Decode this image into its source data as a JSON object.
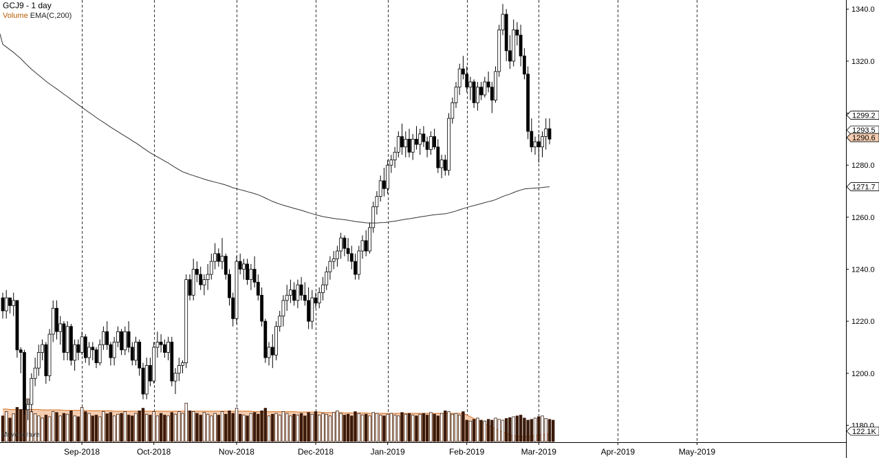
{
  "header": {
    "title": "GCJ9 - 1 day",
    "volume_label": "Volume",
    "ema_label": "EMA(C,200)"
  },
  "volume_pane_label": "MovAverave",
  "colors": {
    "up_candle": "#ffffff",
    "down_candle": "#000000",
    "volume_bar": "#3a1a0a",
    "volume_avg_fill": "#f5cdb0",
    "volume_avg_line": "#d9823f",
    "ema_line": "#333333",
    "grid": "#000000"
  },
  "chart_data": {
    "type": "candlestick",
    "title": "GCJ9 - 1 day",
    "price_axis": {
      "ticks": [
        1340.0,
        1320.0,
        1300.0,
        1280.0,
        1260.0,
        1240.0,
        1220.0,
        1200.0,
        1180.0
      ],
      "tick_labels": [
        "1340.0",
        "1320.0",
        "1300.0",
        "1280.0",
        "1260.0",
        "1240.0",
        "1220.0",
        "1200.0",
        "1180.0"
      ],
      "range": [
        1173.5,
        1343.5
      ]
    },
    "price_markers": [
      {
        "value": 1299.2,
        "label": "1299.2",
        "style": "plain"
      },
      {
        "value": 1293.5,
        "label": "1293.5",
        "style": "plain"
      },
      {
        "value": 1290.6,
        "label": "1290.6",
        "style": "highlight"
      },
      {
        "value": 1271.7,
        "label": "1271.7",
        "style": "plain"
      }
    ],
    "volume_marker": {
      "label": "122.1K"
    },
    "x_axis": {
      "labels": [
        "Sep-2018",
        "Oct-2018",
        "Nov-2018",
        "Dec-2018",
        "Jan-2019",
        "Feb-2019",
        "Mar-2019",
        "Apr-2019",
        "May-2019"
      ],
      "month_start_index": [
        22,
        42,
        65,
        87,
        107,
        129,
        149,
        171,
        193
      ]
    },
    "grid": "vertical dashed at month starts",
    "candles": [
      [
        1229,
        1231,
        1221,
        1224
      ],
      [
        1224,
        1232,
        1221,
        1229
      ],
      [
        1229,
        1229,
        1223,
        1226
      ],
      [
        1226,
        1231,
        1222,
        1228
      ],
      [
        1228,
        1228,
        1206,
        1209
      ],
      [
        1209,
        1210,
        1200,
        1208
      ],
      [
        1208,
        1209,
        1184,
        1186
      ],
      [
        1186,
        1190,
        1182,
        1188
      ],
      [
        1188,
        1200,
        1185,
        1198
      ],
      [
        1198,
        1206,
        1195,
        1202
      ],
      [
        1202,
        1211,
        1199,
        1208
      ],
      [
        1208,
        1213,
        1205,
        1211
      ],
      [
        1211,
        1212,
        1196,
        1199
      ],
      [
        1199,
        1217,
        1197,
        1215
      ],
      [
        1215,
        1228,
        1212,
        1225
      ],
      [
        1225,
        1228,
        1213,
        1216
      ],
      [
        1216,
        1222,
        1211,
        1219
      ],
      [
        1219,
        1220,
        1205,
        1208
      ],
      [
        1208,
        1220,
        1205,
        1218
      ],
      [
        1218,
        1219,
        1203,
        1205
      ],
      [
        1205,
        1213,
        1201,
        1211
      ],
      [
        1211,
        1213,
        1205,
        1208
      ],
      [
        1208,
        1216,
        1207,
        1214
      ],
      [
        1214,
        1215,
        1204,
        1206
      ],
      [
        1206,
        1212,
        1203,
        1210
      ],
      [
        1210,
        1212,
        1205,
        1209
      ],
      [
        1209,
        1210,
        1202,
        1204
      ],
      [
        1204,
        1213,
        1203,
        1211
      ],
      [
        1211,
        1218,
        1209,
        1216
      ],
      [
        1216,
        1220,
        1209,
        1211
      ],
      [
        1211,
        1212,
        1203,
        1206
      ],
      [
        1206,
        1214,
        1203,
        1212
      ],
      [
        1212,
        1218,
        1210,
        1216
      ],
      [
        1216,
        1217,
        1207,
        1209
      ],
      [
        1209,
        1218,
        1207,
        1216
      ],
      [
        1216,
        1220,
        1208,
        1210
      ],
      [
        1210,
        1212,
        1203,
        1205
      ],
      [
        1205,
        1214,
        1203,
        1212
      ],
      [
        1212,
        1213,
        1199,
        1202
      ],
      [
        1202,
        1204,
        1190,
        1192
      ],
      [
        1192,
        1206,
        1190,
        1203
      ],
      [
        1203,
        1206,
        1195,
        1197
      ],
      [
        1197,
        1212,
        1196,
        1210
      ],
      [
        1210,
        1216,
        1206,
        1212
      ],
      [
        1212,
        1215,
        1208,
        1211
      ],
      [
        1211,
        1213,
        1206,
        1208
      ],
      [
        1208,
        1214,
        1205,
        1212
      ],
      [
        1212,
        1214,
        1195,
        1197
      ],
      [
        1197,
        1202,
        1192,
        1200
      ],
      [
        1200,
        1206,
        1197,
        1203
      ],
      [
        1203,
        1205,
        1200,
        1204
      ],
      [
        1204,
        1238,
        1202,
        1236
      ],
      [
        1236,
        1238,
        1228,
        1230
      ],
      [
        1230,
        1244,
        1228,
        1240
      ],
      [
        1240,
        1243,
        1235,
        1238
      ],
      [
        1238,
        1241,
        1232,
        1234
      ],
      [
        1234,
        1238,
        1230,
        1236
      ],
      [
        1236,
        1242,
        1232,
        1238
      ],
      [
        1238,
        1246,
        1236,
        1243
      ],
      [
        1243,
        1250,
        1240,
        1246
      ],
      [
        1246,
        1248,
        1241,
        1243
      ],
      [
        1243,
        1252,
        1240,
        1245
      ],
      [
        1245,
        1246,
        1236,
        1238
      ],
      [
        1238,
        1240,
        1226,
        1229
      ],
      [
        1229,
        1231,
        1218,
        1221
      ],
      [
        1221,
        1245,
        1219,
        1243
      ],
      [
        1243,
        1246,
        1238,
        1240
      ],
      [
        1240,
        1244,
        1236,
        1242
      ],
      [
        1242,
        1244,
        1234,
        1236
      ],
      [
        1236,
        1242,
        1232,
        1240
      ],
      [
        1240,
        1245,
        1233,
        1235
      ],
      [
        1235,
        1238,
        1228,
        1230
      ],
      [
        1230,
        1233,
        1218,
        1220
      ],
      [
        1220,
        1221,
        1204,
        1206
      ],
      [
        1206,
        1212,
        1203,
        1210
      ],
      [
        1210,
        1215,
        1202,
        1207
      ],
      [
        1207,
        1220,
        1205,
        1218
      ],
      [
        1218,
        1224,
        1216,
        1222
      ],
      [
        1222,
        1230,
        1218,
        1228
      ],
      [
        1228,
        1234,
        1224,
        1230
      ],
      [
        1230,
        1236,
        1227,
        1232
      ],
      [
        1232,
        1235,
        1226,
        1228
      ],
      [
        1228,
        1236,
        1225,
        1234
      ],
      [
        1234,
        1237,
        1228,
        1230
      ],
      [
        1230,
        1235,
        1226,
        1228
      ],
      [
        1228,
        1233,
        1217,
        1220
      ],
      [
        1220,
        1232,
        1217,
        1229
      ],
      [
        1229,
        1231,
        1225,
        1227
      ],
      [
        1227,
        1233,
        1225,
        1231
      ],
      [
        1231,
        1237,
        1228,
        1234
      ],
      [
        1234,
        1241,
        1232,
        1239
      ],
      [
        1239,
        1245,
        1236,
        1243
      ],
      [
        1243,
        1247,
        1240,
        1244
      ],
      [
        1244,
        1249,
        1241,
        1247
      ],
      [
        1247,
        1254,
        1244,
        1252
      ],
      [
        1252,
        1253,
        1245,
        1248
      ],
      [
        1248,
        1252,
        1243,
        1246
      ],
      [
        1246,
        1249,
        1240,
        1243
      ],
      [
        1243,
        1246,
        1236,
        1238
      ],
      [
        1238,
        1249,
        1236,
        1247
      ],
      [
        1247,
        1253,
        1244,
        1251
      ],
      [
        1251,
        1255,
        1245,
        1247
      ],
      [
        1247,
        1258,
        1246,
        1256
      ],
      [
        1256,
        1266,
        1254,
        1264
      ],
      [
        1264,
        1270,
        1261,
        1268
      ],
      [
        1268,
        1276,
        1266,
        1274
      ],
      [
        1274,
        1279,
        1268,
        1271
      ],
      [
        1271,
        1282,
        1269,
        1280
      ],
      [
        1280,
        1284,
        1277,
        1282
      ],
      [
        1282,
        1287,
        1279,
        1285
      ],
      [
        1285,
        1293,
        1283,
        1291
      ],
      [
        1291,
        1296,
        1284,
        1287
      ],
      [
        1287,
        1293,
        1283,
        1290
      ],
      [
        1290,
        1294,
        1283,
        1285
      ],
      [
        1285,
        1292,
        1282,
        1290
      ],
      [
        1290,
        1295,
        1286,
        1288
      ],
      [
        1288,
        1294,
        1284,
        1292
      ],
      [
        1292,
        1295,
        1287,
        1289
      ],
      [
        1289,
        1291,
        1283,
        1286
      ],
      [
        1286,
        1293,
        1284,
        1291
      ],
      [
        1291,
        1294,
        1286,
        1287
      ],
      [
        1287,
        1290,
        1277,
        1279
      ],
      [
        1279,
        1284,
        1275,
        1282
      ],
      [
        1282,
        1284,
        1276,
        1278
      ],
      [
        1278,
        1300,
        1276,
        1298
      ],
      [
        1298,
        1306,
        1296,
        1304
      ],
      [
        1304,
        1312,
        1302,
        1310
      ],
      [
        1310,
        1319,
        1307,
        1317
      ],
      [
        1317,
        1322,
        1313,
        1315
      ],
      [
        1315,
        1318,
        1308,
        1310
      ],
      [
        1310,
        1314,
        1305,
        1312
      ],
      [
        1312,
        1313,
        1302,
        1304
      ],
      [
        1304,
        1312,
        1301,
        1310
      ],
      [
        1310,
        1312,
        1305,
        1307
      ],
      [
        1307,
        1314,
        1306,
        1312
      ],
      [
        1312,
        1316,
        1308,
        1310
      ],
      [
        1310,
        1312,
        1300,
        1305
      ],
      [
        1305,
        1318,
        1304,
        1316
      ],
      [
        1316,
        1334,
        1314,
        1332
      ],
      [
        1332,
        1342,
        1330,
        1338
      ],
      [
        1338,
        1340,
        1320,
        1324
      ],
      [
        1324,
        1330,
        1317,
        1320
      ],
      [
        1320,
        1336,
        1318,
        1332
      ],
      [
        1332,
        1335,
        1326,
        1330
      ],
      [
        1330,
        1334,
        1318,
        1322
      ],
      [
        1322,
        1325,
        1313,
        1315
      ],
      [
        1315,
        1318,
        1290,
        1293
      ],
      [
        1293,
        1298,
        1285,
        1287
      ],
      [
        1287,
        1291,
        1284,
        1289
      ],
      [
        1289,
        1292,
        1281,
        1287
      ],
      [
        1287,
        1293,
        1283,
        1291
      ],
      [
        1291,
        1298,
        1286,
        1294
      ],
      [
        1294,
        1298,
        1288,
        1290
      ]
    ],
    "volume_bars": [
      60,
      70,
      55,
      65,
      80,
      75,
      90,
      100,
      70,
      65,
      60,
      55,
      62,
      58,
      70,
      68,
      60,
      66,
      64,
      72,
      60,
      58,
      80,
      70,
      66,
      60,
      62,
      58,
      70,
      65,
      68,
      60,
      64,
      66,
      70,
      62,
      60,
      66,
      72,
      78,
      64,
      62,
      70,
      60,
      66,
      62,
      60,
      68,
      64,
      70,
      66,
      90,
      72,
      70,
      66,
      62,
      68,
      64,
      60,
      66,
      62,
      70,
      64,
      72,
      66,
      78,
      64,
      62,
      60,
      66,
      68,
      64,
      72,
      78,
      60,
      64,
      66,
      62,
      70,
      66,
      60,
      64,
      62,
      66,
      60,
      68,
      64,
      70,
      62,
      66,
      64,
      60,
      68,
      72,
      66,
      62,
      64,
      60,
      70,
      66,
      62,
      64,
      60,
      68,
      66,
      62,
      60,
      64,
      66,
      62,
      60,
      68,
      64,
      66,
      62,
      60,
      64,
      66,
      62,
      68,
      64,
      60,
      66,
      72,
      70,
      64,
      66,
      62,
      70,
      50,
      48,
      52,
      55,
      50,
      48,
      52,
      50,
      55,
      52,
      50,
      54,
      56,
      58,
      60,
      62,
      55,
      50,
      52,
      55,
      58,
      60,
      54,
      52,
      50
    ],
    "volume_avg": [
      76,
      76,
      75,
      75,
      75,
      75,
      75,
      75,
      75,
      75,
      75,
      74,
      74,
      74,
      74,
      74,
      74,
      73,
      73,
      73,
      73,
      73,
      73,
      73,
      72,
      72,
      72,
      72,
      72,
      72,
      72,
      71,
      71,
      71,
      71,
      71,
      71,
      71,
      71,
      71,
      71,
      71,
      71,
      71,
      71,
      71,
      71,
      71,
      71,
      71,
      71,
      71,
      71,
      71,
      71,
      71,
      71,
      71,
      71,
      71,
      71,
      71,
      71,
      71,
      71,
      71,
      71,
      71,
      71,
      71,
      70,
      70,
      70,
      70,
      70,
      70,
      70,
      70,
      70,
      70,
      70,
      70,
      69,
      69,
      69,
      69,
      69,
      69,
      69,
      68,
      68,
      68,
      68,
      68,
      68,
      67,
      67,
      67,
      67,
      67,
      67,
      67,
      66,
      66,
      66,
      66,
      66,
      66,
      66,
      66,
      66,
      66,
      66,
      66,
      66,
      66,
      66,
      66,
      66,
      66,
      66,
      66,
      66,
      66,
      66,
      66,
      66,
      66,
      66,
      62,
      58,
      54,
      50,
      46,
      42,
      38,
      34,
      30,
      26,
      22,
      19,
      16,
      14,
      13,
      12,
      12,
      12,
      13,
      14,
      15,
      16,
      17,
      18
    ]
  }
}
